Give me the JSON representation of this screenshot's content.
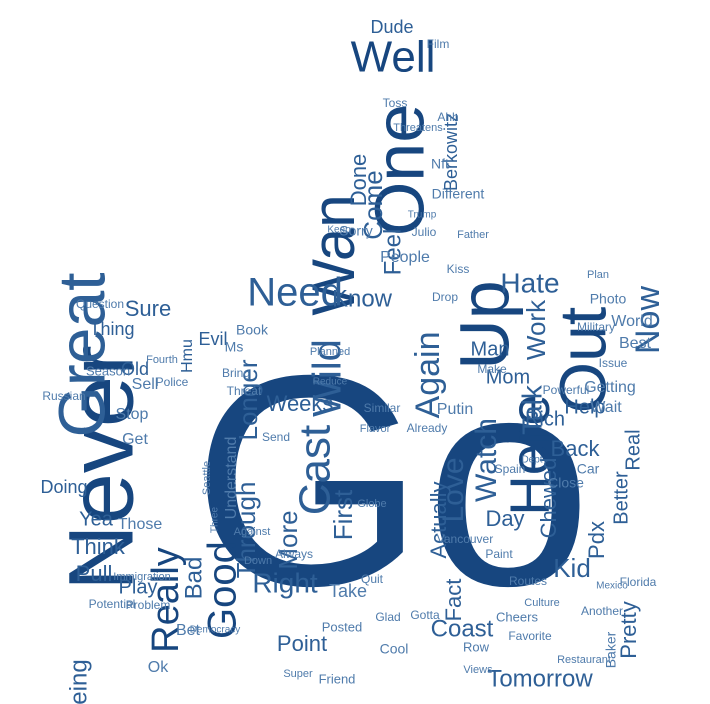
{
  "colors": {
    "dark": "#17467f",
    "mid": "#2e5f96",
    "light": "#4f7bab",
    "background": "#ffffff"
  },
  "words": [
    "Go",
    "Never",
    "Great",
    "Really",
    "Good",
    "Cast",
    "Here",
    "Out",
    "Up",
    "Now",
    "One",
    "Well",
    "Wan",
    "Need",
    "Know",
    "Come",
    "Feel",
    "Hate",
    "Wild",
    "Again",
    "Talk",
    "Work",
    "Watch",
    "Love",
    "First",
    "Through",
    "Longer",
    "Right",
    "Weeks",
    "Done",
    "More",
    "Tomorrow",
    "Coast",
    "Fact",
    "Kid",
    "Pdx",
    "Back",
    "Rich",
    "Help",
    "Mom",
    "Man",
    "Pretty",
    "Bad",
    "Think",
    "Pull",
    "Play",
    "Being",
    "Yea",
    "Doing",
    "Sure",
    "Thing",
    "Old",
    "Day",
    "Point",
    "Chewed",
    "Get",
    "Stop",
    "Those",
    "Sell",
    "Take",
    "Understand",
    "People",
    "Putin",
    "Actually",
    "Getting",
    "Wait",
    "Best",
    "World",
    "Photo",
    "Issue",
    "Car",
    "Close",
    "Spain",
    "Globe",
    "Bet",
    "Posted",
    "Friend",
    "Views",
    "Favorite",
    "Cheers",
    "Routes",
    "Baker",
    "Another",
    "Florida",
    "Problem",
    "Potential",
    "Immigration",
    "Season",
    "Question",
    "Police",
    "Russian",
    "Fourth",
    "Berkowitz",
    "Dude",
    "Film",
    "Nft",
    "Sorry",
    "Different",
    "Trump",
    "Julio",
    "Mexico",
    "Military",
    "Book",
    "Planned",
    "Reduce",
    "Similar",
    "Already",
    "Against",
    "Glad",
    "Cool",
    "Row",
    "Ok",
    "Always",
    "Down",
    "Seattle",
    "Three",
    "Send",
    "Flavor",
    "Make",
    "Powerful",
    "Real",
    "Better",
    "Dept",
    "Paint",
    "Vancouver",
    "Culture",
    "Restaurant",
    "Democracy",
    "Super",
    "Quit",
    "Gotta",
    "Threatens",
    "Father",
    "Keep",
    "Drop",
    "Kiss",
    "Threat",
    "Bring",
    "Evil",
    "Hmu",
    "Ms",
    "Ahh",
    "Toss",
    "Plan"
  ]
}
